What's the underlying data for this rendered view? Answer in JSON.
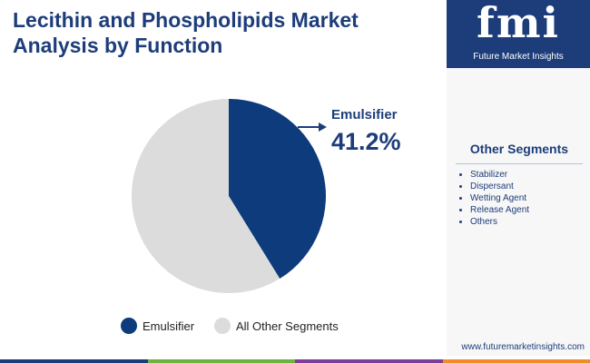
{
  "chart_data": {
    "type": "pie",
    "title": "Lecithin and Phospholipids Market Analysis by Function",
    "categories": [
      "Emulsifier",
      "All Other Segments"
    ],
    "values": [
      41.2,
      58.8
    ],
    "value_labels": [
      "41.2%",
      null
    ],
    "colors": [
      "#0d3b7c",
      "#dcdcdc"
    ],
    "legend": "bottom"
  },
  "sidebar": {
    "logo": "fmi",
    "brand": "Future Market Insights",
    "heading": "Other Segments",
    "items": [
      "Stabilizer",
      "Dispersant",
      "Wetting Agent",
      "Release Agent",
      "Others"
    ],
    "website": "www.futuremarketinsights.com"
  }
}
